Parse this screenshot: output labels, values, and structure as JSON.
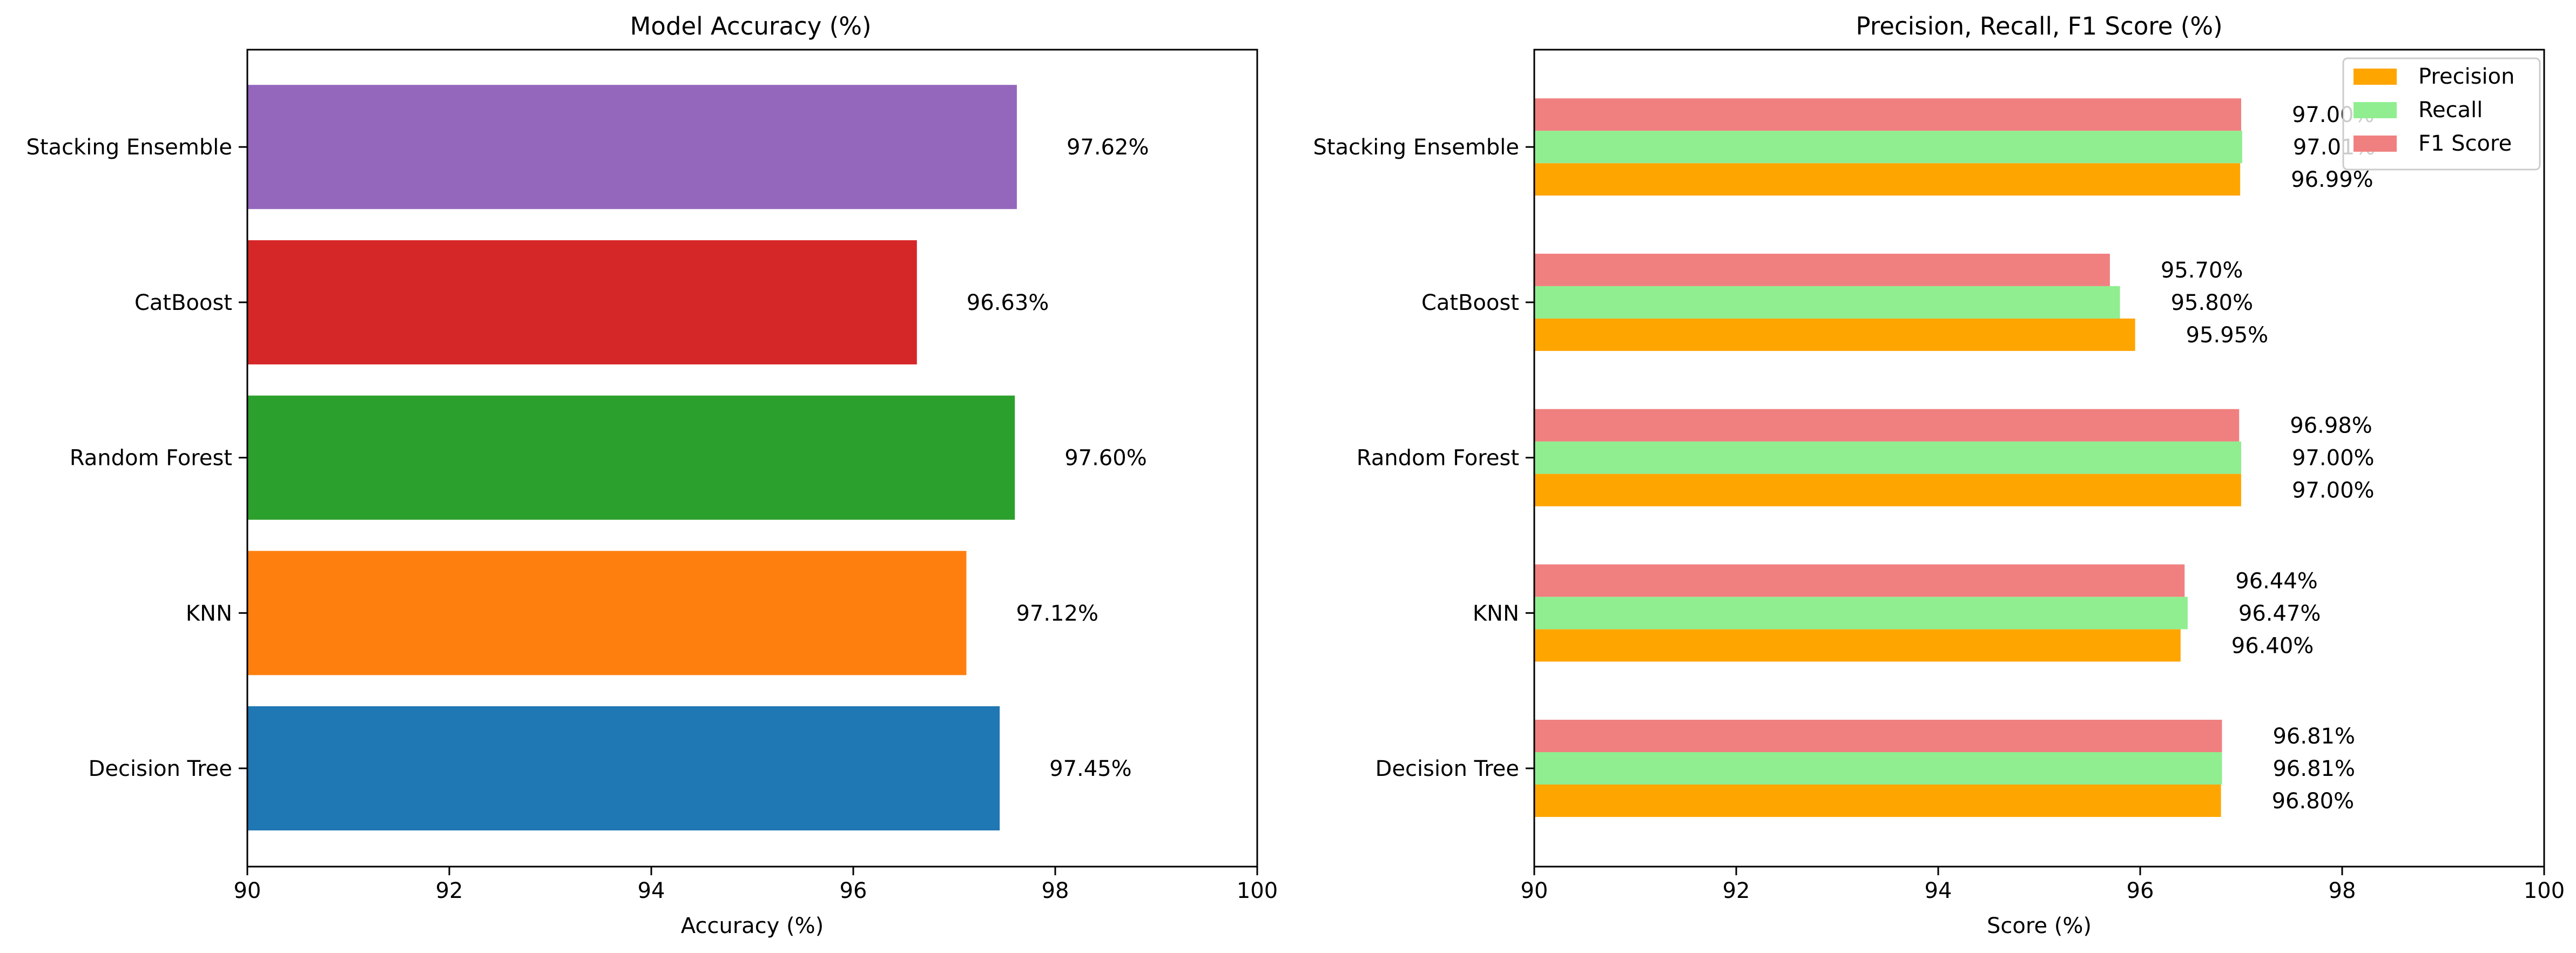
{
  "chart_data": [
    {
      "type": "bar",
      "orientation": "horizontal",
      "title": "Model Accuracy (%)",
      "xlabel": "Accuracy (%)",
      "ylabel": "",
      "xlim": [
        90,
        100
      ],
      "xticks": [
        "90",
        "92",
        "94",
        "96",
        "98",
        "100"
      ],
      "categories": [
        "Decision Tree",
        "KNN",
        "Random Forest",
        "CatBoost",
        "Stacking Ensemble"
      ],
      "values": [
        97.45,
        97.12,
        97.6,
        96.63,
        97.62
      ],
      "value_labels": [
        "97.45%",
        "97.12%",
        "97.60%",
        "96.63%",
        "97.62%"
      ],
      "colors": [
        "#1f77b4",
        "#ff7f0e",
        "#2ca02c",
        "#d62728",
        "#9467bd"
      ],
      "grid": false,
      "legend": false
    },
    {
      "type": "bar",
      "orientation": "horizontal",
      "title": "Precision, Recall, F1 Score (%)",
      "xlabel": "Score (%)",
      "ylabel": "",
      "xlim": [
        90,
        100
      ],
      "xticks": [
        "90",
        "92",
        "94",
        "96",
        "98",
        "100"
      ],
      "categories": [
        "Decision Tree",
        "KNN",
        "Random Forest",
        "CatBoost",
        "Stacking Ensemble"
      ],
      "series": [
        {
          "name": "Precision",
          "color": "#ffa500",
          "values": [
            96.8,
            96.4,
            97.0,
            95.95,
            96.99
          ],
          "value_labels": [
            "96.80%",
            "96.40%",
            "97.00%",
            "95.95%",
            "96.99%"
          ]
        },
        {
          "name": "Recall",
          "color": "#90ee90",
          "values": [
            96.81,
            96.47,
            97.0,
            95.8,
            97.01
          ],
          "value_labels": [
            "96.81%",
            "96.47%",
            "97.00%",
            "95.80%",
            "97.01%"
          ]
        },
        {
          "name": "F1 Score",
          "color": "#f08080",
          "values": [
            96.81,
            96.44,
            96.98,
            95.7,
            97.0
          ],
          "value_labels": [
            "96.81%",
            "96.44%",
            "96.98%",
            "95.70%",
            "97.00%"
          ]
        }
      ],
      "grid": false,
      "legend": "upper right"
    }
  ]
}
